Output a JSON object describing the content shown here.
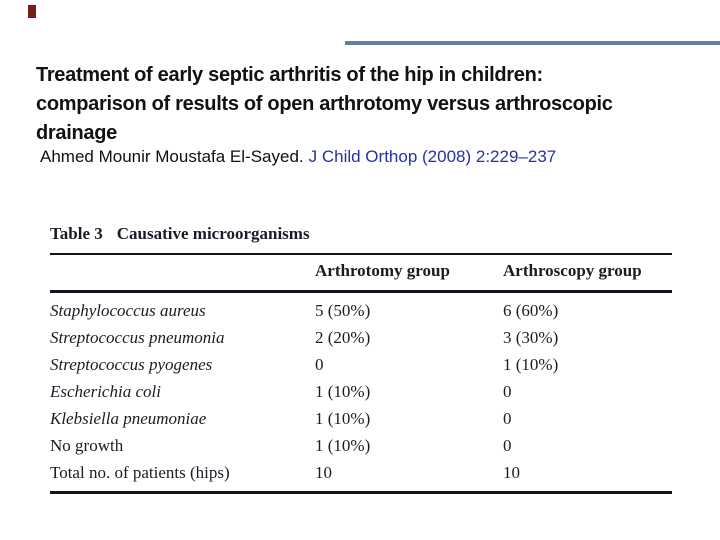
{
  "slide": {
    "background_color": "#ffffff",
    "accent_bar_color": "#7b1c17",
    "divider_color": "#5e81a8",
    "title_lines": [
      "Treatment of early septic arthritis of the hip in children:",
      "comparison of results of open arthrotomy versus arthroscopic",
      "drainage"
    ],
    "citation": {
      "author_text": "Ahmed Mounir Moustafa El-Sayed.",
      "reference_text": "J Child Orthop (2008) 2:229–237",
      "reference_color": "#2233a6"
    }
  },
  "table": {
    "caption_label": "Table 3",
    "caption_title": "Causative microorganisms",
    "columns": [
      "",
      "Arthrotomy group",
      "Arthroscopy group"
    ],
    "rows": [
      {
        "label": "Staphylococcus aureus",
        "arthrotomy": "5 (50%)",
        "arthroscopy": "6 (60%)"
      },
      {
        "label": "Streptococcus pneumonia",
        "arthrotomy": "2 (20%)",
        "arthroscopy": "3 (30%)"
      },
      {
        "label": "Streptococcus pyogenes",
        "arthrotomy": "0",
        "arthroscopy": "1 (10%)"
      },
      {
        "label": "Escherichia coli",
        "arthrotomy": "1 (10%)",
        "arthroscopy": "0"
      },
      {
        "label": "Klebsiella pneumoniae",
        "arthrotomy": "1 (10%)",
        "arthroscopy": "0"
      },
      {
        "label": "No growth",
        "arthrotomy": "1 (10%)",
        "arthroscopy": "0"
      },
      {
        "label": "Total no. of patients (hips)",
        "arthrotomy": "10",
        "arthroscopy": "10"
      }
    ],
    "ink_color": "#1b1b26"
  }
}
